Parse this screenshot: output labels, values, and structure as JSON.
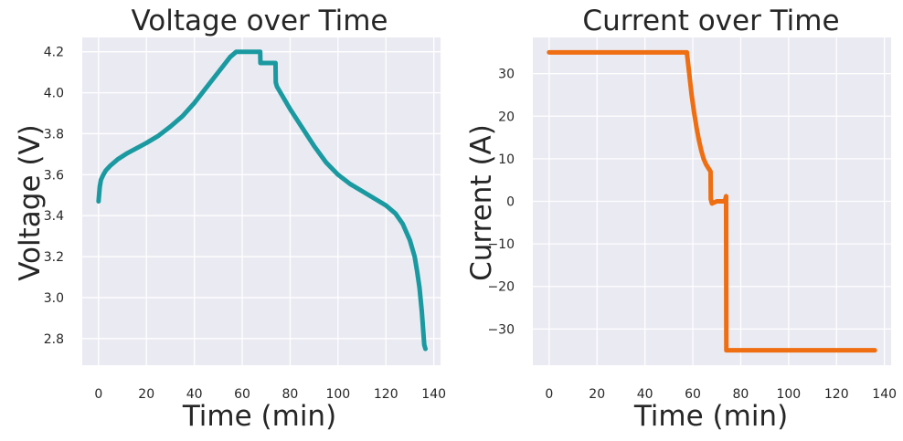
{
  "colors": {
    "panel_bg": "#eaeaf2",
    "grid": "#ffffff",
    "voltage_line": "#1a9aa0",
    "current_line": "#ee6e11"
  },
  "chart_data": [
    {
      "type": "line",
      "title": "Voltage over Time",
      "xlabel": "Time (min)",
      "ylabel": "Voltage (V)",
      "xlim": [
        -6.8,
        142.8
      ],
      "ylim": [
        2.67,
        4.27
      ],
      "xticks": [
        0,
        20,
        40,
        60,
        80,
        100,
        120,
        140
      ],
      "xtick_labels": [
        "0",
        "20",
        "40",
        "60",
        "80",
        "100",
        "120",
        "140"
      ],
      "yticks": [
        2.8,
        3.0,
        3.2,
        3.4,
        3.6,
        3.8,
        4.0,
        4.2
      ],
      "ytick_labels": [
        "2.8",
        "3.0",
        "3.2",
        "3.4",
        "3.6",
        "3.8",
        "4.0",
        "4.2"
      ],
      "grid": true,
      "series": [
        {
          "x": [
            0,
            0.5,
            1,
            2,
            3,
            5,
            8,
            12,
            16,
            20,
            25,
            30,
            35,
            40,
            45,
            50,
            55,
            57.5,
            60,
            64,
            67.5,
            67.6,
            70,
            73.9,
            74,
            74.5,
            76,
            80,
            85,
            90,
            95,
            100,
            105,
            110,
            115,
            120,
            124,
            127,
            130,
            132,
            133,
            134,
            135,
            135.5,
            136,
            136.5
          ],
          "y": [
            3.47,
            3.54,
            3.575,
            3.6,
            3.62,
            3.645,
            3.675,
            3.705,
            3.73,
            3.755,
            3.79,
            3.835,
            3.885,
            3.95,
            4.025,
            4.1,
            4.175,
            4.2,
            4.2,
            4.2,
            4.2,
            4.145,
            4.145,
            4.145,
            4.05,
            4.03,
            4.0,
            3.92,
            3.83,
            3.74,
            3.66,
            3.6,
            3.555,
            3.52,
            3.485,
            3.45,
            3.41,
            3.36,
            3.28,
            3.2,
            3.13,
            3.05,
            2.93,
            2.85,
            2.77,
            2.75
          ]
        }
      ]
    },
    {
      "type": "line",
      "title": "Current over Time",
      "xlabel": "Time (min)",
      "ylabel": "Current (A)",
      "xlim": [
        -6.8,
        142.8
      ],
      "ylim": [
        -38.5,
        38.5
      ],
      "xticks": [
        0,
        20,
        40,
        60,
        80,
        100,
        120,
        140
      ],
      "xtick_labels": [
        "0",
        "20",
        "40",
        "60",
        "80",
        "100",
        "120",
        "140"
      ],
      "yticks": [
        -30,
        -20,
        -10,
        0,
        10,
        20,
        30
      ],
      "ytick_labels": [
        "−30",
        "−20",
        "−10",
        "0",
        "10",
        "20",
        "30"
      ],
      "grid": true,
      "series": [
        {
          "x": [
            0,
            10,
            20,
            30,
            40,
            50,
            57.5,
            58.5,
            59.5,
            60.5,
            61.5,
            62.5,
            63.5,
            64.5,
            65.5,
            66.5,
            67.4,
            67.5,
            68,
            70,
            72,
            73,
            73.5,
            73.9,
            74,
            80,
            90,
            100,
            110,
            120,
            130,
            136
          ],
          "y": [
            35,
            35,
            35,
            35,
            35,
            35,
            35,
            30,
            25,
            21,
            17.5,
            14.5,
            12,
            10,
            8.7,
            7.8,
            7.0,
            0.5,
            -0.5,
            0,
            0,
            0,
            0.3,
            1.2,
            -35,
            -35,
            -35,
            -35,
            -35,
            -35,
            -35,
            -35
          ]
        }
      ]
    }
  ]
}
